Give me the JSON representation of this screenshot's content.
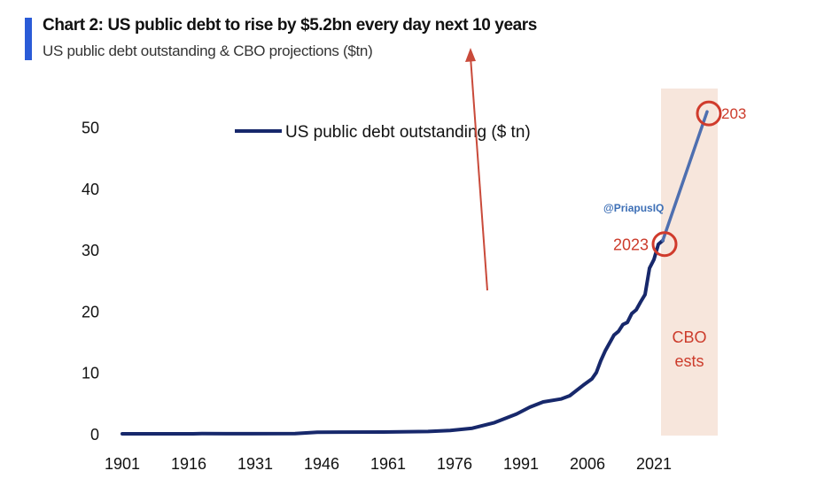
{
  "header": {
    "title": "Chart 2: US public debt to rise by $5.2bn every day next 10 years",
    "subtitle": "US public debt outstanding & CBO projections ($tn)"
  },
  "watermark": "@PriapusIQ",
  "chart_data": {
    "type": "line",
    "title": "Chart 2: US public debt to rise by $5.2bn every day next 10 years",
    "subtitle": "US public debt outstanding & CBO projections ($tn)",
    "xlabel": "",
    "ylabel": "",
    "xlim": [
      1901,
      2034
    ],
    "ylim": [
      0,
      55
    ],
    "x_ticks": [
      1901,
      1916,
      1931,
      1946,
      1961,
      1976,
      1991,
      2006,
      2021
    ],
    "y_ticks": [
      0,
      10,
      20,
      30,
      40,
      50
    ],
    "grid": false,
    "legend": {
      "position": "top-left",
      "entries": [
        "US public debt outstanding ($ tn)"
      ]
    },
    "series": [
      {
        "name": "US public debt outstanding ($ tn)",
        "color": "#17286b",
        "x": [
          1901,
          1917,
          1919,
          1930,
          1940,
          1945,
          1960,
          1970,
          1975,
          1980,
          1985,
          1990,
          1993,
          1996,
          2000,
          2002,
          2005,
          2007,
          2008,
          2009,
          2010,
          2011,
          2012,
          2013,
          2014,
          2015,
          2016,
          2017,
          2018,
          2019,
          2020,
          2021,
          2022,
          2023
        ],
        "y": [
          0.002,
          0.003,
          0.025,
          0.016,
          0.05,
          0.26,
          0.29,
          0.38,
          0.54,
          0.91,
          1.82,
          3.23,
          4.35,
          5.2,
          5.67,
          6.2,
          7.9,
          8.95,
          9.99,
          11.9,
          13.5,
          14.8,
          16.1,
          16.7,
          17.8,
          18.15,
          19.6,
          20.2,
          21.5,
          22.7,
          27.0,
          28.4,
          30.9,
          31.5
        ]
      },
      {
        "name": "",
        "color": "#4e6fb0",
        "x": [
          2023,
          2028,
          2033
        ],
        "y": [
          31.5,
          42,
          52.5
        ]
      }
    ],
    "shaded_region": {
      "x": [
        2023,
        2033
      ],
      "color": "#f7e6dc",
      "label": [
        "CBO",
        "ests"
      ]
    },
    "annotations": [
      {
        "text": "2023",
        "x": 2023,
        "y": 31.5
      },
      {
        "text": "203",
        "x": 2033,
        "y": 52.5
      }
    ]
  }
}
